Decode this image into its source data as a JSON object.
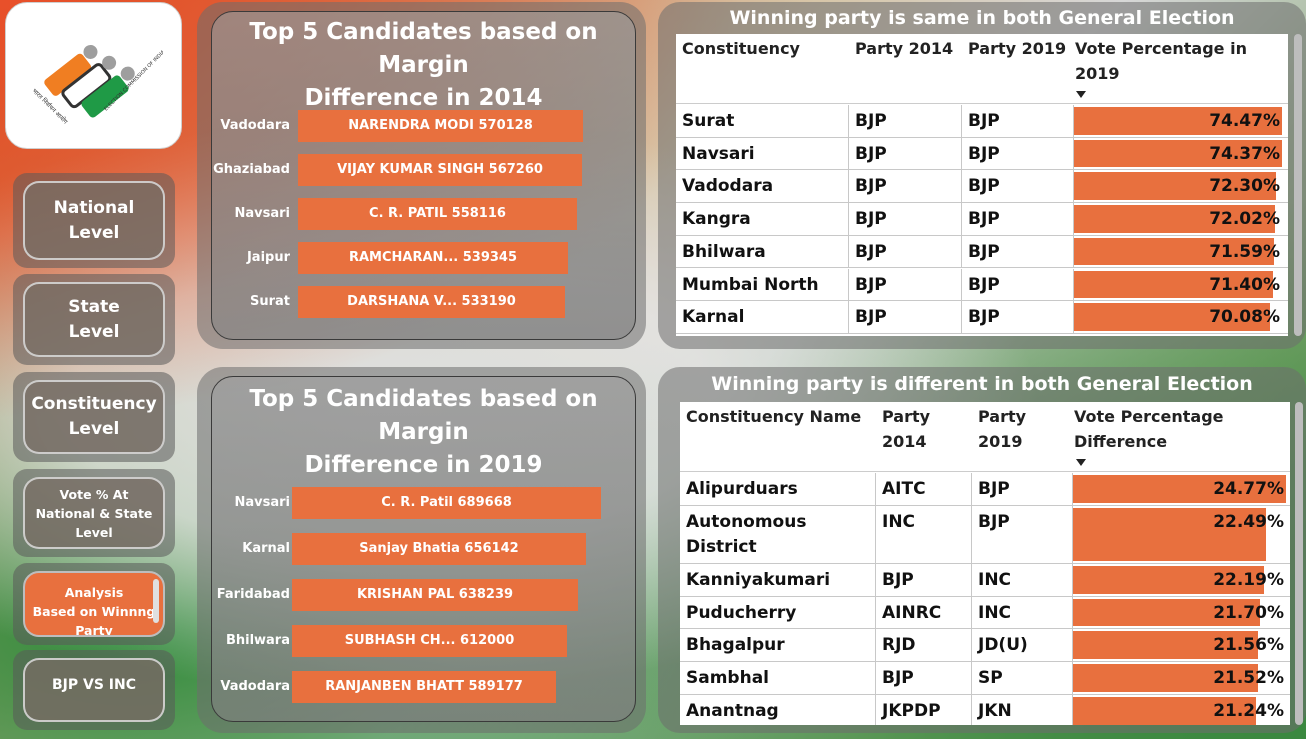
{
  "logo": {
    "hindi_text": "भारत निर्वाचन आयोग",
    "english_text": "ELECTION COMMISSION OF INDIA",
    "colors": {
      "saffron": "#f07e22",
      "green": "#1f9a46",
      "grey": "#9e9e9e"
    }
  },
  "nav": {
    "items": [
      {
        "label_line1": "National",
        "label_line2": "Level"
      },
      {
        "label_line1": "State",
        "label_line2": "Level"
      },
      {
        "label_line1": "Constituency",
        "label_line2": "Level"
      },
      {
        "label_line1": "Vote % At",
        "label_line2": "National & State",
        "label_line3": "Level"
      },
      {
        "label_line1": "Analysis",
        "label_line2": "Based on Winnng",
        "label_line3": "Party"
      },
      {
        "label_line1": "BJP VS INC"
      }
    ],
    "active_index": 4
  },
  "chart_2014": {
    "title_line1": "Top 5 Candidates based on Margin",
    "title_line2": "Difference in 2014"
  },
  "chart_2019": {
    "title_line1": "Top 5 Candidates based on Margin",
    "title_line2": "Difference in 2019"
  },
  "chart_data": [
    {
      "type": "bar",
      "orientation": "horizontal",
      "title": "Top 5 Candidates based on Margin Difference in 2014",
      "categories": [
        "Vadodara",
        "Ghaziabad",
        "Navsari",
        "Jaipur",
        "Surat"
      ],
      "candidates": [
        "NARENDRA MODI",
        "VIJAY KUMAR SINGH",
        "C. R. PATIL",
        "RAMCHARAN...",
        "DARSHANA V..."
      ],
      "values": [
        570128,
        567260,
        558116,
        539345,
        533190
      ],
      "xlim": [
        0,
        600000
      ]
    },
    {
      "type": "bar",
      "orientation": "horizontal",
      "title": "Top 5 Candidates based on Margin Difference in 2019",
      "categories": [
        "Navsari",
        "Karnal",
        "Faridabad",
        "Bhilwara",
        "Vadodara"
      ],
      "candidates": [
        "C. R. Patil",
        "Sanjay Bhatia",
        "KRISHAN PAL",
        "SUBHASH CH...",
        "RANJANBEN BHATT"
      ],
      "values": [
        689668,
        656142,
        638239,
        612000,
        589177
      ],
      "xlim": [
        0,
        720000
      ]
    }
  ],
  "table_same": {
    "title": "Winning party is same in both General Election",
    "headers": [
      "Constituency",
      "Party 2014",
      "Party 2019",
      "Vote Percentage in 2019"
    ],
    "header_vote_line1": "Vote Percentage in",
    "header_vote_line2": "2019",
    "rows": [
      {
        "name": "Surat",
        "p2014": "BJP",
        "p2019": "BJP",
        "value": 74.47,
        "label": "74.47%"
      },
      {
        "name": "Navsari",
        "p2014": "BJP",
        "p2019": "BJP",
        "value": 74.37,
        "label": "74.37%"
      },
      {
        "name": "Vadodara",
        "p2014": "BJP",
        "p2019": "BJP",
        "value": 72.3,
        "label": "72.30%"
      },
      {
        "name": "Kangra",
        "p2014": "BJP",
        "p2019": "BJP",
        "value": 72.02,
        "label": "72.02%"
      },
      {
        "name": "Bhilwara",
        "p2014": "BJP",
        "p2019": "BJP",
        "value": 71.59,
        "label": "71.59%"
      },
      {
        "name": "Mumbai North",
        "p2014": "BJP",
        "p2019": "BJP",
        "value": 71.4,
        "label": "71.40%"
      },
      {
        "name": "Karnal",
        "p2014": "BJP",
        "p2019": "BJP",
        "value": 70.08,
        "label": "70.08%"
      }
    ],
    "bar_max": 74.47
  },
  "table_diff": {
    "title": "Winning party is different in both General Election",
    "header_name": "Constituency Name",
    "header_p2014_line1": "Party",
    "header_p2014_line2": "2014",
    "header_p2019_line1": "Party",
    "header_p2019_line2": "2019",
    "header_vote_line1": "Vote Percentage",
    "header_vote_line2": "Difference",
    "rows": [
      {
        "name_line1": "Alipurduars",
        "p2014": "AITC",
        "p2019": "BJP",
        "value": 24.77,
        "label": "24.77%"
      },
      {
        "name_line1": "Autonomous",
        "name_line2": "District",
        "p2014": "INC",
        "p2019": "BJP",
        "value": 22.49,
        "label": "22.49%"
      },
      {
        "name_line1": "Kanniyakumari",
        "p2014": "BJP",
        "p2019": "INC",
        "value": 22.19,
        "label": "22.19%"
      },
      {
        "name_line1": "Puducherry",
        "p2014": "AINRC",
        "p2019": "INC",
        "value": 21.7,
        "label": "21.70%"
      },
      {
        "name_line1": "Bhagalpur",
        "p2014": "RJD",
        "p2019": "JD(U)",
        "value": 21.56,
        "label": "21.56%"
      },
      {
        "name_line1": "Sambhal",
        "p2014": "BJP",
        "p2019": "SP",
        "value": 21.52,
        "label": "21.52%"
      },
      {
        "name_line1": "Anantnag",
        "p2014": "JKPDP",
        "p2019": "JKN",
        "value": 21.24,
        "label": "21.24%"
      }
    ],
    "bar_max": 24.77
  },
  "colors": {
    "bar": "#e8703e",
    "panel": "#6e6e6e"
  }
}
